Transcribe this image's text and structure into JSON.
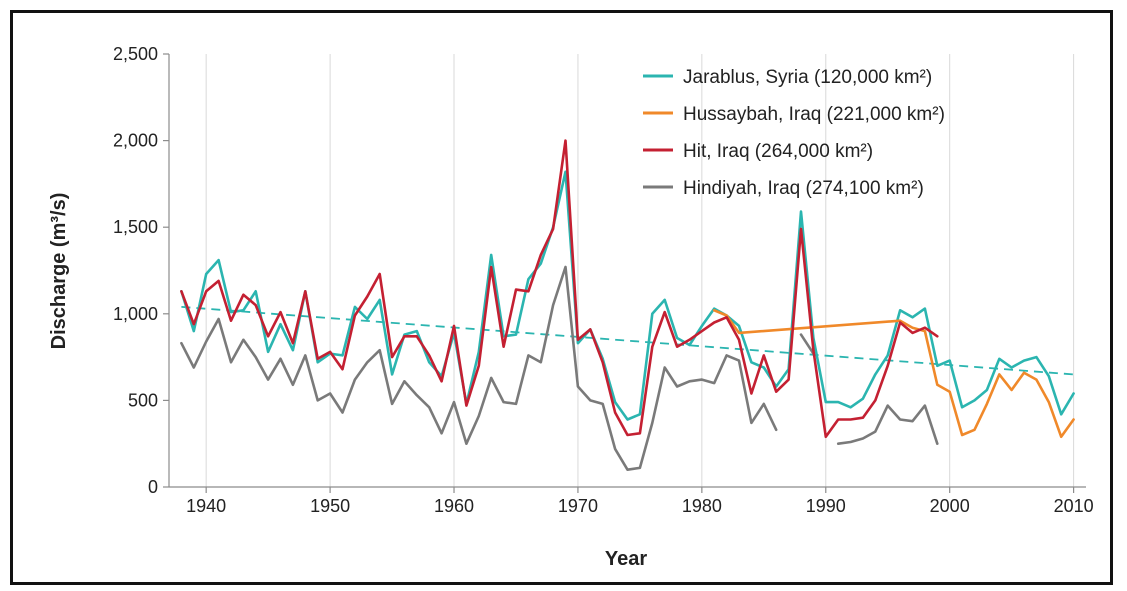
{
  "chart_data": {
    "type": "line",
    "title": "",
    "xlabel": "Year",
    "ylabel": "Discharge (m³/s)",
    "xlim": [
      1937,
      2011
    ],
    "ylim": [
      0,
      2500
    ],
    "x_ticks": [
      1940,
      1950,
      1960,
      1970,
      1980,
      1990,
      2000,
      2010
    ],
    "y_ticks": [
      0,
      500,
      1000,
      1500,
      2000,
      2500
    ],
    "x_tick_labels": [
      "1940",
      "1950",
      "1960",
      "1970",
      "1980",
      "1990",
      "2000",
      "2010"
    ],
    "y_tick_labels": [
      "0",
      "500",
      "1,000",
      "1,500",
      "2,000",
      "2,500"
    ],
    "grid": "vertical",
    "legend_position": "top-right",
    "series": [
      {
        "name": "Jarablus, Syria (120,000 km²)",
        "color": "#2bb5b0",
        "points": [
          [
            1938,
            1130
          ],
          [
            1939,
            900
          ],
          [
            1940,
            1230
          ],
          [
            1941,
            1310
          ],
          [
            1942,
            1010
          ],
          [
            1943,
            1020
          ],
          [
            1944,
            1130
          ],
          [
            1945,
            780
          ],
          [
            1946,
            940
          ],
          [
            1947,
            790
          ],
          [
            1948,
            1130
          ],
          [
            1949,
            720
          ],
          [
            1950,
            770
          ],
          [
            1951,
            760
          ],
          [
            1952,
            1040
          ],
          [
            1953,
            970
          ],
          [
            1954,
            1080
          ],
          [
            1955,
            650
          ],
          [
            1956,
            880
          ],
          [
            1957,
            900
          ],
          [
            1958,
            720
          ],
          [
            1959,
            640
          ],
          [
            1960,
            890
          ],
          [
            1961,
            480
          ],
          [
            1962,
            780
          ],
          [
            1963,
            1340
          ],
          [
            1964,
            870
          ],
          [
            1965,
            880
          ],
          [
            1966,
            1200
          ],
          [
            1967,
            1290
          ],
          [
            1968,
            1500
          ],
          [
            1969,
            1820
          ],
          [
            1970,
            830
          ],
          [
            1971,
            910
          ],
          [
            1972,
            740
          ],
          [
            1973,
            490
          ],
          [
            1974,
            390
          ],
          [
            1975,
            420
          ],
          [
            1976,
            1000
          ],
          [
            1977,
            1080
          ],
          [
            1978,
            860
          ],
          [
            1979,
            820
          ],
          [
            1980,
            930
          ],
          [
            1981,
            1030
          ],
          [
            1982,
            990
          ],
          [
            1983,
            930
          ],
          [
            1984,
            720
          ],
          [
            1985,
            690
          ],
          [
            1986,
            580
          ],
          [
            1987,
            680
          ],
          [
            1988,
            1590
          ],
          [
            1989,
            860
          ],
          [
            1990,
            490
          ],
          [
            1991,
            490
          ],
          [
            1992,
            460
          ],
          [
            1993,
            510
          ],
          [
            1994,
            650
          ],
          [
            1995,
            760
          ],
          [
            1996,
            1020
          ],
          [
            1997,
            980
          ],
          [
            1998,
            1030
          ],
          [
            1999,
            700
          ],
          [
            2000,
            730
          ],
          [
            2001,
            460
          ],
          [
            2002,
            500
          ],
          [
            2003,
            560
          ],
          [
            2004,
            740
          ],
          [
            2005,
            690
          ],
          [
            2006,
            730
          ],
          [
            2007,
            750
          ],
          [
            2008,
            640
          ],
          [
            2009,
            420
          ],
          [
            2010,
            540
          ]
        ]
      },
      {
        "name": "Hussaybah, Iraq (221,000 km²)",
        "color": "#f0892a",
        "points": [
          [
            1981,
            1020
          ],
          [
            1982,
            990
          ],
          [
            1983,
            890
          ],
          [
            1996,
            960
          ],
          [
            1997,
            920
          ],
          [
            1998,
            900
          ],
          [
            1999,
            590
          ],
          [
            2000,
            550
          ],
          [
            2001,
            300
          ],
          [
            2002,
            330
          ],
          [
            2003,
            480
          ],
          [
            2004,
            650
          ],
          [
            2005,
            560
          ],
          [
            2006,
            660
          ],
          [
            2007,
            620
          ],
          [
            2008,
            490
          ],
          [
            2009,
            290
          ],
          [
            2010,
            390
          ]
        ]
      },
      {
        "name": "Hit, Iraq (264,000 km²)",
        "color": "#c42032",
        "points": [
          [
            1938,
            1130
          ],
          [
            1939,
            940
          ],
          [
            1940,
            1130
          ],
          [
            1941,
            1190
          ],
          [
            1942,
            960
          ],
          [
            1943,
            1110
          ],
          [
            1944,
            1050
          ],
          [
            1945,
            870
          ],
          [
            1946,
            1010
          ],
          [
            1947,
            830
          ],
          [
            1948,
            1130
          ],
          [
            1949,
            740
          ],
          [
            1950,
            780
          ],
          [
            1951,
            680
          ],
          [
            1952,
            990
          ],
          [
            1953,
            1100
          ],
          [
            1954,
            1230
          ],
          [
            1955,
            750
          ],
          [
            1956,
            870
          ],
          [
            1957,
            870
          ],
          [
            1958,
            760
          ],
          [
            1959,
            610
          ],
          [
            1960,
            930
          ],
          [
            1961,
            470
          ],
          [
            1962,
            700
          ],
          [
            1963,
            1270
          ],
          [
            1964,
            810
          ],
          [
            1965,
            1140
          ],
          [
            1966,
            1130
          ],
          [
            1967,
            1340
          ],
          [
            1968,
            1490
          ],
          [
            1969,
            2000
          ],
          [
            1970,
            850
          ],
          [
            1971,
            910
          ],
          [
            1972,
            720
          ],
          [
            1973,
            430
          ],
          [
            1974,
            300
          ],
          [
            1975,
            310
          ],
          [
            1976,
            810
          ],
          [
            1977,
            1010
          ],
          [
            1978,
            810
          ],
          [
            1979,
            850
          ],
          [
            1980,
            900
          ],
          [
            1981,
            950
          ],
          [
            1982,
            980
          ],
          [
            1983,
            850
          ],
          [
            1984,
            540
          ],
          [
            1985,
            760
          ],
          [
            1986,
            550
          ],
          [
            1987,
            620
          ],
          [
            1988,
            1490
          ],
          [
            1989,
            790
          ],
          [
            1990,
            290
          ],
          [
            1991,
            390
          ],
          [
            1992,
            390
          ],
          [
            1993,
            400
          ],
          [
            1994,
            500
          ],
          [
            1995,
            700
          ],
          [
            1996,
            950
          ],
          [
            1997,
            890
          ],
          [
            1998,
            920
          ],
          [
            1999,
            870
          ]
        ]
      },
      {
        "name": "Hindiyah, Iraq (274,100 km²)",
        "color": "#7a7a7a",
        "segments": [
          [
            [
              1938,
              830
            ],
            [
              1939,
              690
            ],
            [
              1940,
              840
            ],
            [
              1941,
              970
            ],
            [
              1942,
              720
            ],
            [
              1943,
              850
            ],
            [
              1944,
              750
            ],
            [
              1945,
              620
            ],
            [
              1946,
              740
            ],
            [
              1947,
              590
            ],
            [
              1948,
              760
            ],
            [
              1949,
              500
            ],
            [
              1950,
              540
            ],
            [
              1951,
              430
            ],
            [
              1952,
              620
            ],
            [
              1953,
              720
            ],
            [
              1954,
              790
            ],
            [
              1955,
              480
            ],
            [
              1956,
              610
            ],
            [
              1957,
              530
            ],
            [
              1958,
              460
            ],
            [
              1959,
              310
            ],
            [
              1960,
              490
            ],
            [
              1961,
              250
            ],
            [
              1962,
              410
            ],
            [
              1963,
              630
            ],
            [
              1964,
              490
            ],
            [
              1965,
              480
            ],
            [
              1966,
              760
            ],
            [
              1967,
              720
            ],
            [
              1968,
              1050
            ],
            [
              1969,
              1270
            ],
            [
              1970,
              580
            ],
            [
              1971,
              500
            ],
            [
              1972,
              480
            ],
            [
              1973,
              220
            ],
            [
              1974,
              100
            ],
            [
              1975,
              110
            ],
            [
              1976,
              370
            ],
            [
              1977,
              690
            ],
            [
              1978,
              580
            ],
            [
              1979,
              610
            ],
            [
              1980,
              620
            ],
            [
              1981,
              600
            ],
            [
              1982,
              760
            ],
            [
              1983,
              730
            ],
            [
              1984,
              370
            ],
            [
              1985,
              480
            ],
            [
              1986,
              330
            ]
          ],
          [
            [
              1988,
              880
            ],
            [
              1989,
              770
            ]
          ],
          [
            [
              1991,
              250
            ],
            [
              1992,
              260
            ],
            [
              1993,
              280
            ],
            [
              1994,
              320
            ],
            [
              1995,
              470
            ],
            [
              1996,
              390
            ],
            [
              1997,
              380
            ],
            [
              1998,
              470
            ],
            [
              1999,
              250
            ]
          ]
        ]
      }
    ],
    "trendline": {
      "style": "dashed",
      "color": "#2bb5b0",
      "points": [
        [
          1938,
          1040
        ],
        [
          2010,
          650
        ]
      ]
    }
  }
}
